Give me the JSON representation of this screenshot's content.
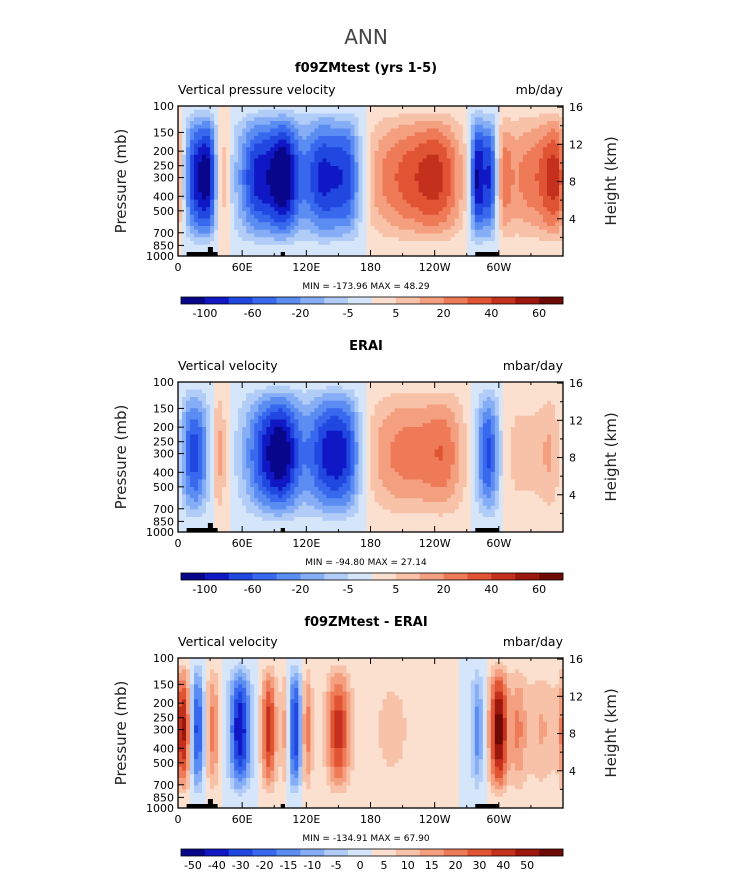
{
  "page_title": "ANN",
  "cmap": [
    "#08068a",
    "#1018c6",
    "#2048e0",
    "#3868ee",
    "#5a8cf2",
    "#86aef6",
    "#b2ccf8",
    "#d6e6fa",
    "#fbe0d0",
    "#f8c2a8",
    "#f4a080",
    "#ee7a58",
    "#e05434",
    "#c4301c",
    "#9c180c",
    "#6e0a06"
  ],
  "chart_data": [
    {
      "type": "heatmap",
      "title": "f09ZMtest (yrs 1-5)",
      "left_label": "Vertical pressure velocity",
      "right_label": "mb/day",
      "ylabel": "Pressure (mb)",
      "y2label": "Height (km)",
      "xticks": [
        "0",
        "60E",
        "120E",
        "180",
        "120W",
        "60W"
      ],
      "yticks": [
        "100",
        "150",
        "200",
        "250",
        "300",
        "400",
        "500",
        "700",
        "850",
        "1000"
      ],
      "y2ticks": [
        "16",
        "12",
        "8",
        "4"
      ],
      "minmax": "MIN = -173.96   MAX =  48.29",
      "colorbar_labels": [
        "-100",
        "-60",
        "-20",
        "-5",
        "5",
        "20",
        "40",
        "60"
      ],
      "features": [
        {
          "lon": 12,
          "amp": -0.8,
          "w": 8
        },
        {
          "lon": 28,
          "amp": -1.0,
          "w": 8
        },
        {
          "lon": 40,
          "amp": 0.5,
          "w": 5
        },
        {
          "lon": 75,
          "amp": -0.9,
          "w": 14
        },
        {
          "lon": 100,
          "amp": -1.0,
          "w": 10
        },
        {
          "lon": 135,
          "amp": -0.9,
          "w": 14
        },
        {
          "lon": 160,
          "amp": -0.7,
          "w": 10
        },
        {
          "lon": 215,
          "amp": 0.6,
          "w": 30
        },
        {
          "lon": 245,
          "amp": 0.4,
          "w": 15
        },
        {
          "lon": 280,
          "amp": -1.1,
          "w": 5
        },
        {
          "lon": 292,
          "amp": -0.9,
          "w": 5
        },
        {
          "lon": 305,
          "amp": 0.3,
          "w": 5
        },
        {
          "lon": 330,
          "amp": 0.5,
          "w": 20
        },
        {
          "lon": 355,
          "amp": 0.6,
          "w": 10
        }
      ]
    },
    {
      "type": "heatmap",
      "title": "ERAI",
      "left_label": "Vertical velocity",
      "right_label": "mbar/day",
      "ylabel": "Pressure (mb)",
      "y2label": "Height (km)",
      "xticks": [
        "0",
        "60E",
        "120E",
        "180",
        "120W",
        "60W"
      ],
      "yticks": [
        "100",
        "150",
        "200",
        "250",
        "300",
        "400",
        "500",
        "700",
        "850",
        "1000"
      ],
      "y2ticks": [
        "16",
        "12",
        "8",
        "4"
      ],
      "minmax": "MIN = -94.80  MAX =  27.14",
      "colorbar_labels": [
        "-100",
        "-60",
        "-20",
        "-5",
        "5",
        "20",
        "40",
        "60"
      ],
      "features": [
        {
          "lon": 15,
          "amp": -0.8,
          "w": 10
        },
        {
          "lon": 38,
          "amp": 0.4,
          "w": 5
        },
        {
          "lon": 80,
          "amp": -0.7,
          "w": 15
        },
        {
          "lon": 100,
          "amp": -0.8,
          "w": 12
        },
        {
          "lon": 140,
          "amp": -0.9,
          "w": 15
        },
        {
          "lon": 160,
          "amp": -0.5,
          "w": 10
        },
        {
          "lon": 215,
          "amp": 0.5,
          "w": 30
        },
        {
          "lon": 250,
          "amp": 0.3,
          "w": 12
        },
        {
          "lon": 290,
          "amp": -0.8,
          "w": 8
        },
        {
          "lon": 320,
          "amp": 0.2,
          "w": 15
        },
        {
          "lon": 350,
          "amp": 0.3,
          "w": 10
        }
      ]
    },
    {
      "type": "heatmap",
      "title": "f09ZMtest - ERAI",
      "left_label": "Vertical velocity",
      "right_label": "mbar/day",
      "ylabel": "Pressure (mb)",
      "y2label": "Height (km)",
      "xticks": [
        "0",
        "60E",
        "120E",
        "180",
        "120W",
        "60W"
      ],
      "yticks": [
        "100",
        "150",
        "200",
        "250",
        "300",
        "400",
        "500",
        "700",
        "850",
        "1000"
      ],
      "y2ticks": [
        "16",
        "12",
        "8",
        "4"
      ],
      "minmax": "MIN = -134.91  MAX =  67.90",
      "colorbar_labels": [
        "-50",
        "-40",
        "-30",
        "-20",
        "-15",
        "-10",
        "-5",
        "0",
        "5",
        "10",
        "15",
        "20",
        "30",
        "40",
        "50"
      ],
      "features": [
        {
          "lon": 5,
          "amp": 0.9,
          "w": 5
        },
        {
          "lon": 18,
          "amp": -0.8,
          "w": 5
        },
        {
          "lon": 32,
          "amp": 0.5,
          "w": 5
        },
        {
          "lon": 58,
          "amp": -1.0,
          "w": 7
        },
        {
          "lon": 85,
          "amp": 0.8,
          "w": 5
        },
        {
          "lon": 100,
          "amp": 0.4,
          "w": 3
        },
        {
          "lon": 110,
          "amp": -0.9,
          "w": 5
        },
        {
          "lon": 120,
          "amp": 0.6,
          "w": 4
        },
        {
          "lon": 150,
          "amp": 0.8,
          "w": 8
        },
        {
          "lon": 200,
          "amp": 0.2,
          "w": 15
        },
        {
          "lon": 280,
          "amp": -0.5,
          "w": 4
        },
        {
          "lon": 300,
          "amp": 1.1,
          "w": 6
        },
        {
          "lon": 318,
          "amp": 0.4,
          "w": 5
        },
        {
          "lon": 340,
          "amp": 0.3,
          "w": 12
        }
      ]
    }
  ]
}
